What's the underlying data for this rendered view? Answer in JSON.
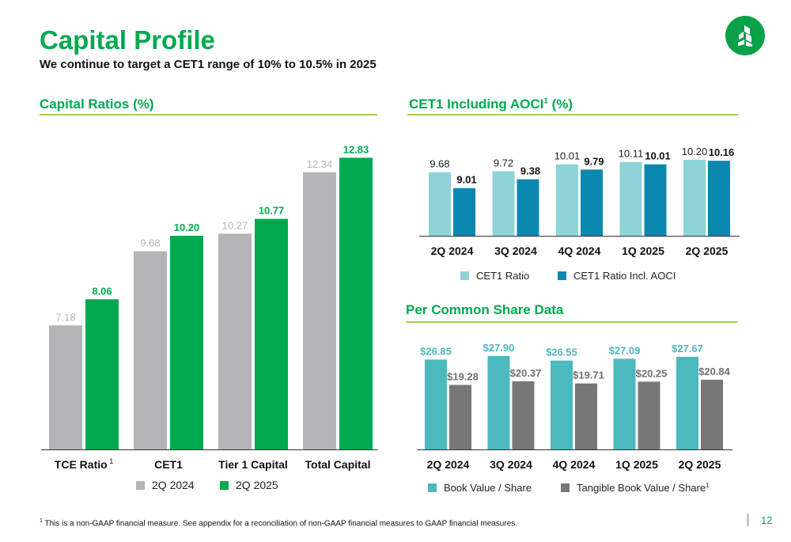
{
  "header": {
    "title": "Capital Profile",
    "subtitle": "We continue to target a CET1 range of 10% to 10.5% in 2025",
    "logo_icon": "tree-logo-icon"
  },
  "sections": {
    "capital_ratios": "Capital Ratios (%)",
    "cet1_aoci": "CET1 Including AOCI",
    "cet1_aoci_sup": "1",
    "cet1_aoci_suffix": " (%)",
    "per_share": "Per Common Share Data"
  },
  "colors": {
    "brand_green": "#00a94f",
    "rule_green": "#a2d145",
    "gray_2024": "#b4b4b6",
    "light_teal": "#8dd3d7",
    "dark_teal": "#0b88b0",
    "book_teal": "#4bb9bd",
    "tangible_gray": "#777777"
  },
  "chart_data": [
    {
      "id": "capital_ratios",
      "type": "bar",
      "title": "Capital Ratios (%)",
      "categories": [
        "TCE Ratio",
        "CET1",
        "Tier 1 Capital",
        "Total Capital"
      ],
      "category_superscripts": [
        "1",
        "",
        "",
        ""
      ],
      "series": [
        {
          "name": "2Q 2024",
          "values": [
            7.18,
            9.68,
            10.27,
            12.34
          ],
          "labels": [
            "7.18",
            "9.68",
            "10.27",
            "12.34"
          ]
        },
        {
          "name": "2Q 2025",
          "values": [
            8.06,
            10.2,
            10.77,
            12.83
          ],
          "labels": [
            "8.06",
            "10.20",
            "10.77",
            "12.83"
          ]
        }
      ],
      "ylim": [
        3.0,
        13.5
      ],
      "grid": false,
      "legend": "bottom"
    },
    {
      "id": "cet1_aoci",
      "type": "bar",
      "title": "CET1 Including AOCI (%)",
      "categories": [
        "2Q 2024",
        "3Q 2024",
        "4Q 2024",
        "1Q 2025",
        "2Q 2025"
      ],
      "series": [
        {
          "name": "CET1 Ratio",
          "values": [
            9.68,
            9.72,
            10.01,
            10.11,
            10.2
          ],
          "labels": [
            "9.68",
            "9.72",
            "10.01",
            "10.11",
            "10.20"
          ]
        },
        {
          "name": "CET1 Ratio Incl. AOCI",
          "values": [
            9.01,
            9.38,
            9.79,
            10.01,
            10.16
          ],
          "labels": [
            "9.01",
            "9.38",
            "9.79",
            "10.01",
            "10.16"
          ]
        }
      ],
      "ylim": [
        7.0,
        10.7
      ],
      "grid": false,
      "legend": "bottom"
    },
    {
      "id": "per_share",
      "type": "bar",
      "title": "Per Common Share Data",
      "categories": [
        "2Q 2024",
        "3Q 2024",
        "4Q 2024",
        "1Q 2025",
        "2Q 2025"
      ],
      "series": [
        {
          "name": "Book Value / Share",
          "values": [
            26.85,
            27.9,
            26.55,
            27.09,
            27.67
          ],
          "labels": [
            "$26.85",
            "$27.90",
            "$26.55",
            "$27.09",
            "$27.67"
          ]
        },
        {
          "name": "Tangible Book Value / Share",
          "name_sup": "1",
          "values": [
            19.28,
            20.37,
            19.71,
            20.25,
            20.84
          ],
          "labels": [
            "$19.28",
            "$20.37",
            "$19.71",
            "$20.25",
            "$20.84"
          ]
        }
      ],
      "ylim": [
        0,
        30
      ],
      "grid": false,
      "legend": "bottom"
    }
  ],
  "footer": {
    "footnote_marker": "1",
    "footnote": " This is a non-GAAP financial measure. See appendix for a reconciliation of non-GAAP financial measures to GAAP financial measures.",
    "page_number": "12"
  }
}
